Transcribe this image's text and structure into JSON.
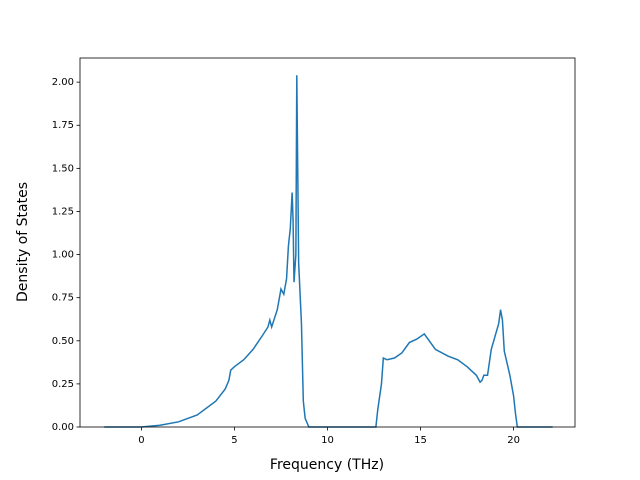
{
  "chart_data": {
    "type": "line",
    "xlabel": "Frequency (THz)",
    "ylabel": "Density of States",
    "x": [
      -2,
      0,
      1,
      2,
      3,
      4,
      4.5,
      4.7,
      4.8,
      5,
      5.5,
      6,
      6.5,
      6.8,
      6.9,
      7.0,
      7.3,
      7.5,
      7.65,
      7.8,
      7.9,
      8.0,
      8.1,
      8.15,
      8.2,
      8.3,
      8.35,
      8.45,
      8.6,
      8.7,
      8.8,
      9,
      10,
      12.6,
      12.7,
      12.9,
      13.0,
      13.2,
      13.6,
      14,
      14.4,
      14.8,
      15.2,
      15.4,
      15.8,
      16.5,
      17,
      17.5,
      18,
      18.2,
      18.3,
      18.4,
      18.6,
      18.8,
      19.2,
      19.3,
      19.4,
      19.5,
      19.8,
      20.0,
      20.1,
      20.2,
      21,
      22.1
    ],
    "series": [
      {
        "color": "#1f77b4",
        "values": [
          0,
          0,
          0.01,
          0.03,
          0.07,
          0.15,
          0.22,
          0.27,
          0.33,
          0.35,
          0.39,
          0.45,
          0.53,
          0.58,
          0.62,
          0.58,
          0.68,
          0.8,
          0.77,
          0.86,
          1.05,
          1.15,
          1.36,
          1.2,
          0.84,
          1.0,
          2.04,
          0.95,
          0.6,
          0.15,
          0.05,
          0,
          0,
          0,
          0.1,
          0.25,
          0.4,
          0.39,
          0.4,
          0.43,
          0.49,
          0.51,
          0.54,
          0.51,
          0.45,
          0.41,
          0.39,
          0.35,
          0.3,
          0.26,
          0.27,
          0.3,
          0.3,
          0.45,
          0.6,
          0.68,
          0.62,
          0.44,
          0.3,
          0.18,
          0.08,
          0,
          0,
          0
        ]
      }
    ],
    "xlim": [
      -3.3,
      23.3
    ],
    "ylim": [
      0,
      2.14
    ],
    "xticks": [
      0,
      5,
      10,
      15,
      20
    ],
    "yticks": [
      {
        "value": 0,
        "label": "0.00"
      },
      {
        "value": 0.25,
        "label": "0.25"
      },
      {
        "value": 0.5,
        "label": "0.50"
      },
      {
        "value": 0.75,
        "label": "0.75"
      },
      {
        "value": 1,
        "label": "1.00"
      },
      {
        "value": 1.25,
        "label": "1.25"
      },
      {
        "value": 1.5,
        "label": "1.50"
      },
      {
        "value": 1.75,
        "label": "1.75"
      },
      {
        "value": 2,
        "label": "2.00"
      }
    ]
  }
}
